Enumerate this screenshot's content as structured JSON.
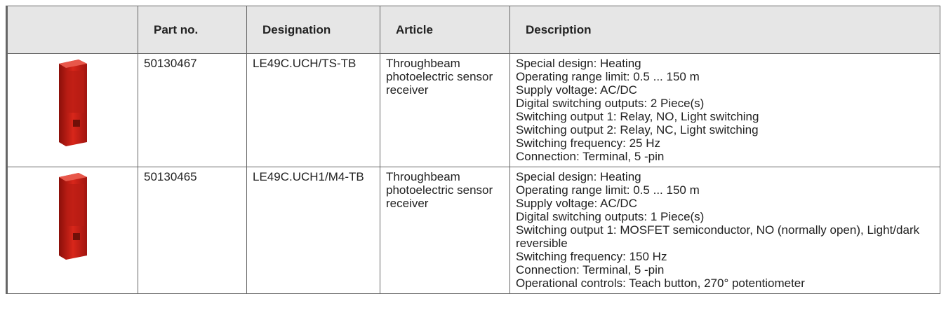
{
  "table": {
    "header": [
      "Part no.",
      "Designation",
      "Article",
      "Description"
    ],
    "rows": [
      {
        "part_no": "50130467",
        "designation": "LE49C.UCH/TS-TB",
        "article": "Throughbeam photoelectric sensor receiver",
        "description": [
          "Special design: Heating",
          "Operating range limit: 0.5 ... 150 m",
          "Supply voltage: AC/DC",
          "Digital switching outputs: 2 Piece(s)",
          "Switching output 1: Relay, NO, Light switching",
          "Switching output 2: Relay, NC, Light switching",
          "Switching frequency: 25 Hz",
          "Connection: Terminal, 5 -pin"
        ]
      },
      {
        "part_no": "50130465",
        "designation": "LE49C.UCH1/M4-TB",
        "article": "Throughbeam photoelectric sensor receiver",
        "description": [
          "Special design: Heating",
          "Operating range limit: 0.5 ... 150 m",
          "Supply voltage: AC/DC",
          "Digital switching outputs: 1 Piece(s)",
          "Switching output 1: MOSFET semiconductor, NO (normally open), Light/dark reversible",
          "Switching frequency: 150 Hz",
          "Connection: Terminal, 5 -pin",
          "Operational controls: Teach button, 270° potentiometer"
        ]
      }
    ]
  }
}
